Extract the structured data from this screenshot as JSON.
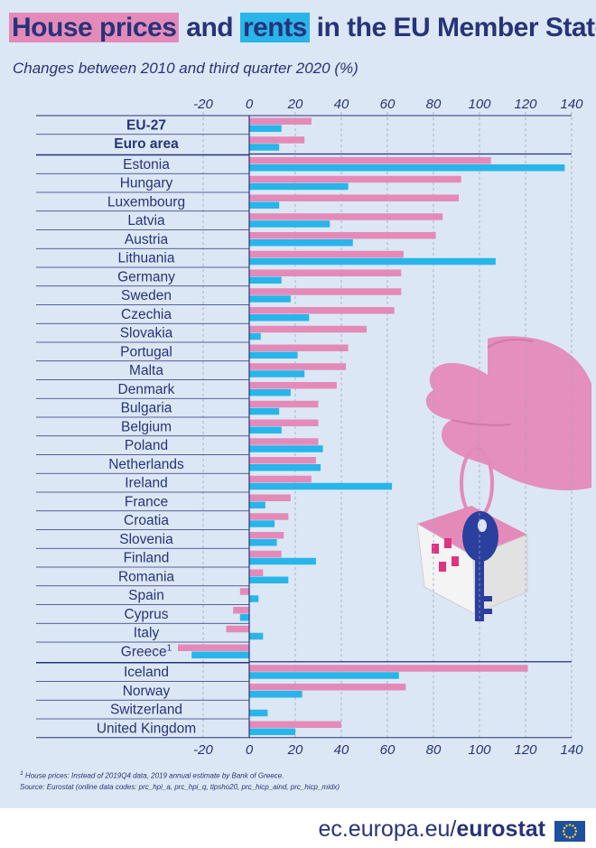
{
  "title": {
    "part1": "House prices",
    "part2": " and ",
    "part3": "rents",
    "part4": " in the EU Member States"
  },
  "subtitle": "Changes between 2010 and third quarter 2020 (%)",
  "footnote": {
    "mark": "1",
    "text": " House prices: Instead of 2019Q4 data, 2019 annual estimate by Bank of Greece."
  },
  "source": "Source: Eurostat (online data codes: prc_hpi_a, prc_hpi_q, tipsho20, prc_hicp_aind, prc_hicp_midx)",
  "brand": {
    "prefix": "ec.europa.eu/",
    "name": "eurostat"
  },
  "colors": {
    "house_prices": "#e48ab9",
    "rents": "#28b5ea",
    "text": "#27337a",
    "background": "#dce7f5"
  },
  "chart_data": {
    "type": "bar",
    "orientation": "horizontal",
    "xlim": [
      -30,
      140
    ],
    "xticks": [
      -20,
      0,
      20,
      40,
      60,
      80,
      100,
      120,
      140
    ],
    "categories": [
      "EU-27",
      "Euro area",
      "Estonia",
      "Hungary",
      "Luxembourg",
      "Latvia",
      "Austria",
      "Lithuania",
      "Germany",
      "Sweden",
      "Czechia",
      "Slovakia",
      "Portugal",
      "Malta",
      "Denmark",
      "Bulgaria",
      "Belgium",
      "Poland",
      "Netherlands",
      "Ireland",
      "France",
      "Croatia",
      "Slovenia",
      "Finland",
      "Romania",
      "Spain",
      "Cyprus",
      "Italy",
      "Greece",
      "Iceland",
      "Norway",
      "Switzerland",
      "United Kingdom"
    ],
    "category_superscripts": {
      "Greece": "1"
    },
    "bold_categories": [
      "EU-27",
      "Euro area"
    ],
    "series": [
      {
        "name": "House prices",
        "color": "#e48ab9",
        "values": [
          27,
          24,
          105,
          92,
          91,
          84,
          81,
          67,
          66,
          66,
          63,
          51,
          43,
          42,
          38,
          30,
          30,
          30,
          29,
          27,
          18,
          17,
          15,
          14,
          6,
          -4,
          -7,
          -10,
          -31,
          121,
          68,
          null,
          40
        ]
      },
      {
        "name": "Rents",
        "color": "#28b5ea",
        "values": [
          14,
          13,
          137,
          43,
          13,
          35,
          45,
          107,
          14,
          18,
          26,
          5,
          21,
          24,
          18,
          13,
          14,
          32,
          31,
          62,
          7,
          11,
          12,
          29,
          17,
          4,
          -4,
          6,
          -25,
          65,
          23,
          8,
          20
        ]
      }
    ]
  }
}
